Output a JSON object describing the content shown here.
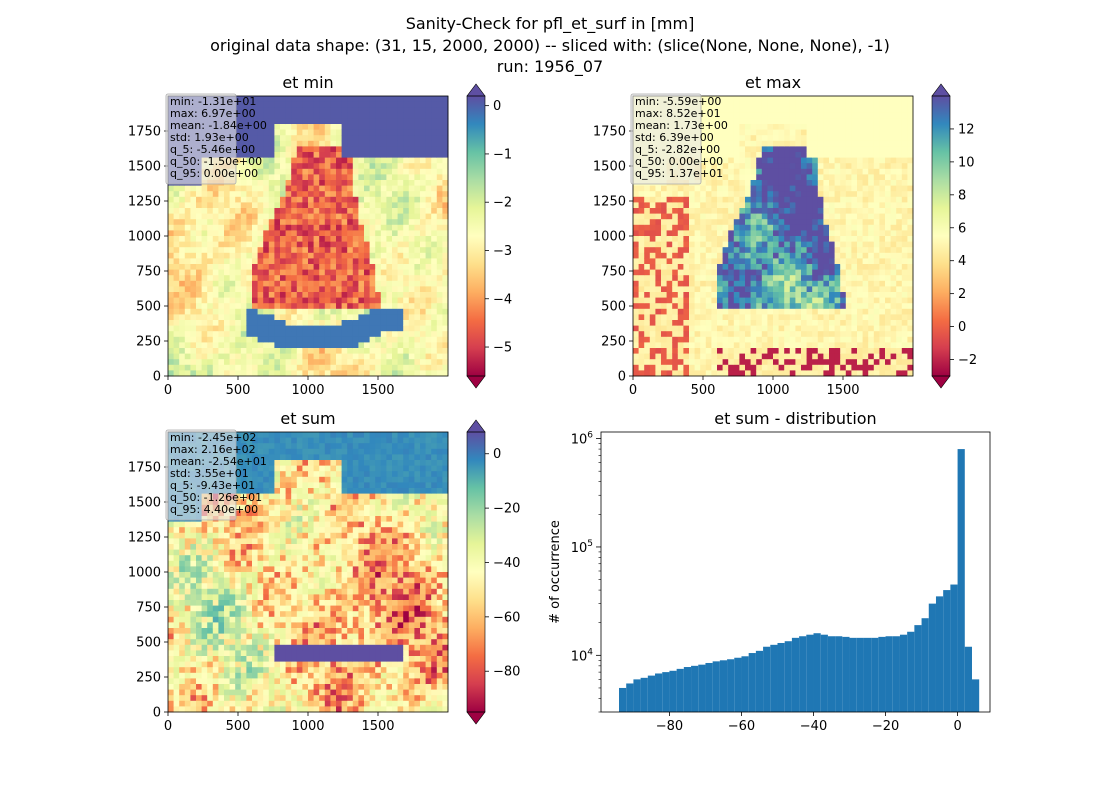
{
  "figure": {
    "title_lines": [
      "Sanity-Check for pfl_et_surf in [mm]",
      "original data shape: (31, 15, 2000, 2000) -- sliced with: (slice(None, None, None), -1)",
      "run: 1956_07"
    ]
  },
  "chart_data": [
    {
      "type": "heatmap",
      "title": "et min",
      "xlim": [
        0,
        2000
      ],
      "ylim": [
        0,
        2000
      ],
      "xticks": [
        "0",
        "500",
        "1000",
        "1500"
      ],
      "yticks": [
        "0",
        "250",
        "500",
        "750",
        "1000",
        "1250",
        "1500",
        "1750"
      ],
      "colormap": "Spectral",
      "colorbar": {
        "range": [
          -5.6,
          0.2
        ],
        "extend": "both",
        "ticks": [
          "0",
          "−1",
          "−2",
          "−3",
          "−4",
          "−5"
        ]
      },
      "stats": [
        "min: -1.31e+01",
        "max: 6.97e+00",
        "mean: -1.84e+00",
        "std: 1.93e+00",
        "q_5: -5.46e+00",
        "q_50: -1.50e+00",
        "q_95: 0.00e+00"
      ]
    },
    {
      "type": "heatmap",
      "title": "et max",
      "xlim": [
        0,
        2000
      ],
      "ylim": [
        0,
        2000
      ],
      "xticks": [
        "0",
        "500",
        "1000",
        "1500"
      ],
      "yticks": [
        "0",
        "250",
        "500",
        "750",
        "1000",
        "1250",
        "1500",
        "1750"
      ],
      "colormap": "Spectral",
      "colorbar": {
        "range": [
          -3,
          14
        ],
        "extend": "both",
        "ticks": [
          "12",
          "10",
          "8",
          "6",
          "4",
          "2",
          "0",
          "−2"
        ]
      },
      "stats": [
        "min: -5.59e+00",
        "max: 8.52e+01",
        "mean: 1.73e+00",
        "std: 6.39e+00",
        "q_5: -2.82e+00",
        "q_50: 0.00e+00",
        "q_95: 1.37e+01"
      ]
    },
    {
      "type": "heatmap",
      "title": "et sum",
      "xlim": [
        0,
        2000
      ],
      "ylim": [
        0,
        2000
      ],
      "xticks": [
        "0",
        "500",
        "1000",
        "1500"
      ],
      "yticks": [
        "0",
        "250",
        "500",
        "750",
        "1000",
        "1250",
        "1500",
        "1750"
      ],
      "colormap": "Spectral",
      "colorbar": {
        "range": [
          -95,
          8
        ],
        "extend": "both",
        "ticks": [
          "0",
          "−20",
          "−40",
          "−60",
          "−80"
        ]
      },
      "stats": [
        "min: -2.45e+02",
        "max: 2.16e+02",
        "mean: -2.54e+01",
        "std: 3.55e+01",
        "q_5: -9.43e+01",
        "q_50: -1.26e+01",
        "q_95: 4.40e+00"
      ]
    },
    {
      "type": "bar",
      "title": "et sum - distribution",
      "xlabel": "",
      "ylabel": "# of occurrence",
      "yscale": "log",
      "xlim": [
        -99,
        9
      ],
      "ylim": [
        3000,
        1150000
      ],
      "xticks": [
        "−80",
        "−60",
        "−40",
        "−20",
        "0"
      ],
      "color": "#1f77b4",
      "x": [
        -94,
        -92,
        -90,
        -88,
        -86,
        -84,
        -82,
        -80,
        -78,
        -76,
        -74,
        -72,
        -70,
        -68,
        -66,
        -64,
        -62,
        -60,
        -58,
        -56,
        -54,
        -52,
        -50,
        -48,
        -46,
        -44,
        -42,
        -40,
        -38,
        -36,
        -34,
        -32,
        -30,
        -28,
        -26,
        -24,
        -22,
        -20,
        -18,
        -16,
        -14,
        -12,
        -10,
        -8,
        -6,
        -4,
        -2,
        0,
        2,
        4
      ],
      "values": [
        5000,
        5500,
        6000,
        6200,
        6500,
        6800,
        7000,
        7200,
        7500,
        7800,
        8000,
        8200,
        8500,
        8800,
        9000,
        9200,
        9500,
        9800,
        10500,
        11000,
        12000,
        12500,
        13000,
        13500,
        14500,
        15000,
        15500,
        16000,
        15500,
        15000,
        15000,
        14800,
        14500,
        14500,
        14500,
        14500,
        14800,
        15000,
        15000,
        15500,
        16500,
        19000,
        22000,
        30000,
        35000,
        40000,
        45000,
        800000,
        12000,
        6000
      ]
    }
  ]
}
